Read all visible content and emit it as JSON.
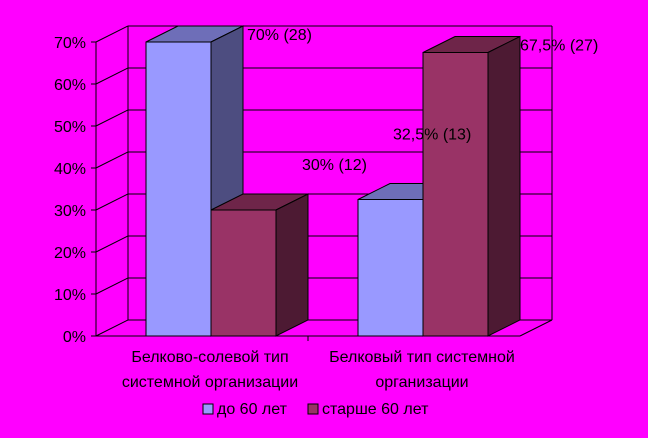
{
  "chart_data": {
    "type": "bar",
    "title": "",
    "xlabel": "",
    "ylabel": "",
    "ylim": [
      0,
      70
    ],
    "y_ticks": [
      "0%",
      "10%",
      "20%",
      "30%",
      "40%",
      "50%",
      "60%",
      "70%"
    ],
    "categories": [
      [
        "Белково-солевой тип",
        "системной организации"
      ],
      [
        "Белковый тип системной",
        "организации"
      ]
    ],
    "series": [
      {
        "name": "до 60 лет",
        "values": [
          70,
          32.5
        ],
        "labels": [
          "70% (28)",
          "32,5% (13)"
        ],
        "color": "#9999ff"
      },
      {
        "name": "старше 60 лет",
        "values": [
          30,
          67.5
        ],
        "labels": [
          "30% (12)",
          "67,5% (27)"
        ],
        "color": "#993366"
      }
    ],
    "legend_position": "bottom",
    "grid": true,
    "three_d": true,
    "background": "#ff00ff"
  }
}
